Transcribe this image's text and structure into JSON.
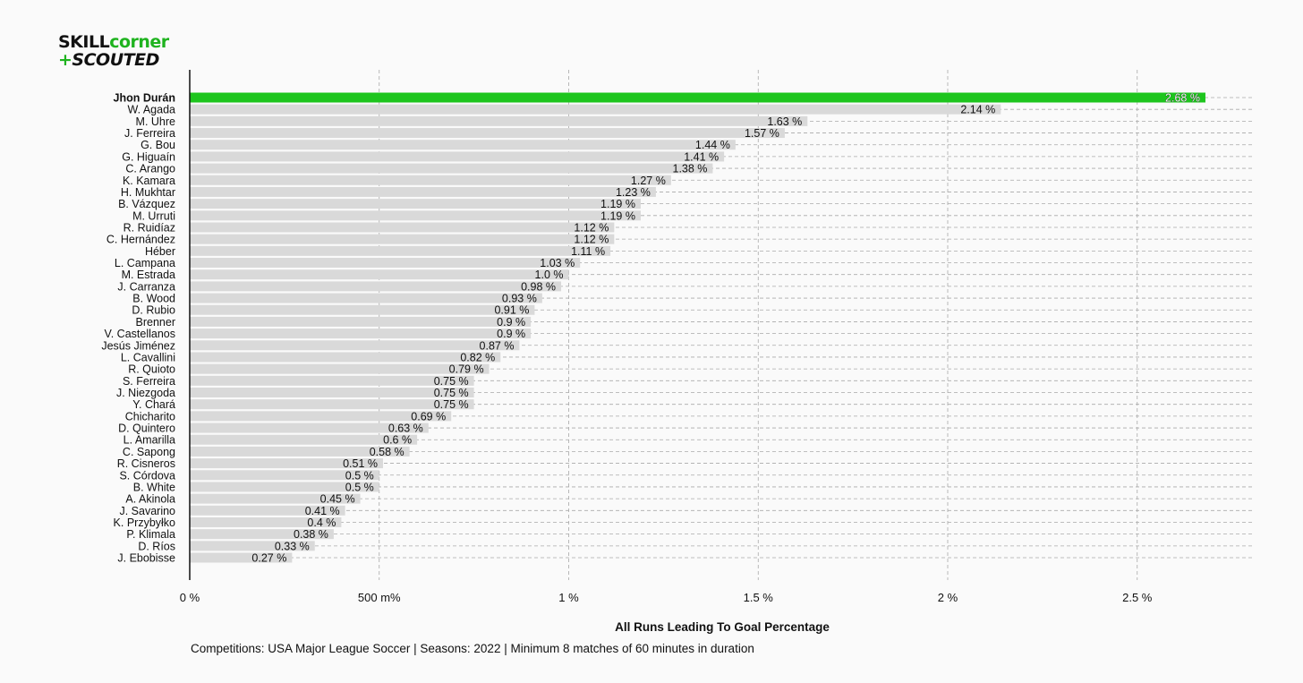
{
  "logo": {
    "line1_a": "SKILL",
    "line1_b": "corner",
    "line2_a": "+",
    "line2_b": "SCOUTED"
  },
  "colors": {
    "highlight": "#1ec51e",
    "bar": "#d9d9d9",
    "grid": "#a9a9a9",
    "axis": "#111111"
  },
  "chart_data": {
    "type": "bar",
    "orientation": "horizontal",
    "xlabel": "All Runs Leading To Goal Percentage",
    "xlim": [
      0,
      2.8
    ],
    "xticks": [
      0,
      0.5,
      1,
      1.5,
      2,
      2.5
    ],
    "xtick_labels": [
      "0 %",
      "500 m%",
      "1 %",
      "1.5 %",
      "2 %",
      "2.5 %"
    ],
    "grid": true,
    "highlight_index": 0,
    "categories": [
      "Jhon Durán",
      "W. Agada",
      "M. Uhre",
      "J. Ferreira",
      "G. Bou",
      "G. Higuaín",
      "C. Arango",
      "K. Kamara",
      "H. Mukhtar",
      "B. Vázquez",
      "M. Urruti",
      "R. Ruidíaz",
      "C. Hernández",
      "Héber",
      "L. Campana",
      "M. Estrada",
      "J. Carranza",
      "B. Wood",
      "D. Rubio",
      "Brenner",
      "V. Castellanos",
      "Jesús Jiménez",
      "L. Cavallini",
      "R. Quioto",
      "S. Ferreira",
      "J. Niezgoda",
      "Y. Chará",
      "Chicharito",
      "D. Quintero",
      "L. Amarilla",
      "C. Sapong",
      "R. Cisneros",
      "S. Córdova",
      "B. White",
      "A. Akinola",
      "J. Savarino",
      "K. Przybyłko",
      "P. Klimala",
      "D. Ríos",
      "J. Ebobisse"
    ],
    "values": [
      2.68,
      2.14,
      1.63,
      1.57,
      1.44,
      1.41,
      1.38,
      1.27,
      1.23,
      1.19,
      1.19,
      1.12,
      1.12,
      1.11,
      1.03,
      1.0,
      0.98,
      0.93,
      0.91,
      0.9,
      0.9,
      0.87,
      0.82,
      0.79,
      0.75,
      0.75,
      0.75,
      0.69,
      0.63,
      0.6,
      0.58,
      0.51,
      0.5,
      0.5,
      0.45,
      0.41,
      0.4,
      0.38,
      0.33,
      0.27
    ],
    "value_labels": [
      "2.68 %",
      "2.14 %",
      "1.63 %",
      "1.57 %",
      "1.44 %",
      "1.41 %",
      "1.38 %",
      "1.27 %",
      "1.23 %",
      "1.19 %",
      "1.19 %",
      "1.12 %",
      "1.12 %",
      "1.11 %",
      "1.03 %",
      "1.0 %",
      "0.98 %",
      "0.93 %",
      "0.91 %",
      "0.9 %",
      "0.9 %",
      "0.87 %",
      "0.82 %",
      "0.79 %",
      "0.75 %",
      "0.75 %",
      "0.75 %",
      "0.69 %",
      "0.63 %",
      "0.6 %",
      "0.58 %",
      "0.51 %",
      "0.5 %",
      "0.5 %",
      "0.45 %",
      "0.41 %",
      "0.4 %",
      "0.38 %",
      "0.33 %",
      "0.27 %"
    ]
  },
  "footer": {
    "note": "Competitions: USA Major League Soccer | Seasons: 2022 | Minimum 8 matches of 60 minutes in duration"
  }
}
